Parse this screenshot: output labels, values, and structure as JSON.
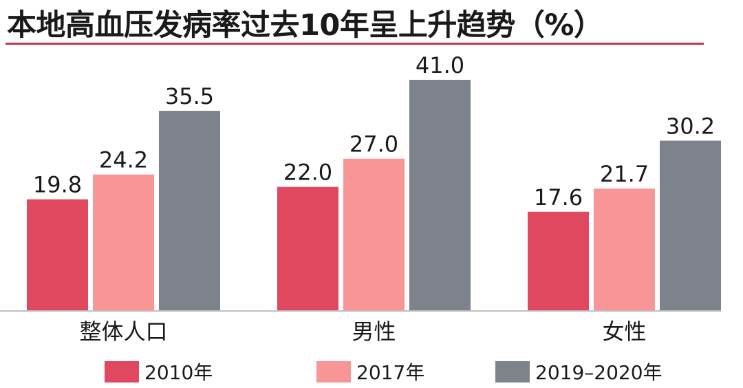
{
  "chart_data": {
    "type": "bar",
    "title": "本地高血压发病率过去10年呈上升趋势（%）",
    "categories": [
      "整体人口",
      "男性",
      "女性"
    ],
    "series": [
      {
        "name": "2010年",
        "values": [
          19.8,
          22.0,
          17.6
        ],
        "color": "#e0485f"
      },
      {
        "name": "2017年",
        "values": [
          24.2,
          27.0,
          21.7
        ],
        "color": "#f79597"
      },
      {
        "name": "2019–2020年",
        "values": [
          35.5,
          41.0,
          30.2
        ],
        "color": "#7e838b"
      }
    ],
    "value_labels": [
      [
        "19.8",
        "22.0",
        "17.6"
      ],
      [
        "24.2",
        "27.0",
        "21.7"
      ],
      [
        "35.5",
        "41.0",
        "30.2"
      ]
    ],
    "ylim": [
      0,
      41.0
    ],
    "grid": false,
    "legend_position": "bottom",
    "xlabel": "",
    "ylabel": ""
  }
}
